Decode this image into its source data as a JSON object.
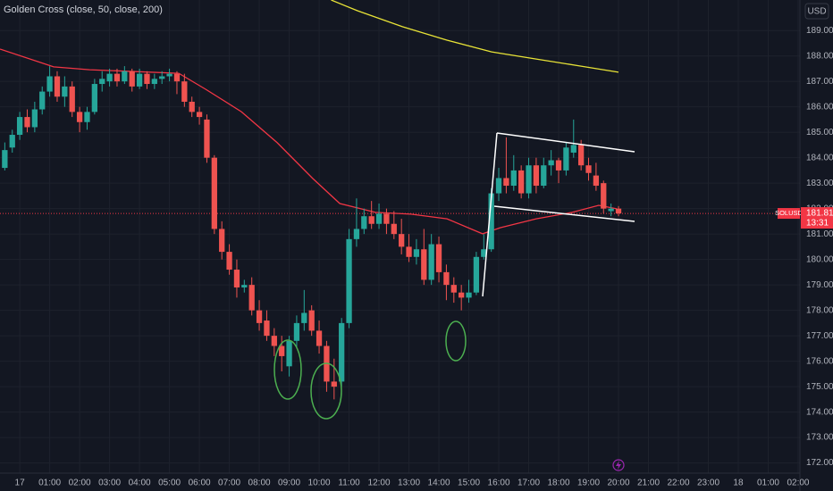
{
  "chart_data": {
    "type": "candlestick",
    "title": "Golden Cross (close, 50, close, 200)",
    "symbol": "SOLUSD",
    "currency": "USD",
    "countdown": "13:31",
    "last_price": 181.81,
    "last_price_color": "#f23645",
    "grid": true,
    "xlim": [
      -0.66,
      26.06
    ],
    "ylim": [
      171.6,
      190.2
    ],
    "xticks": [
      {
        "value": 0,
        "label": "17"
      },
      {
        "value": 1,
        "label": "01:00"
      },
      {
        "value": 2,
        "label": "02:00"
      },
      {
        "value": 3,
        "label": "03:00"
      },
      {
        "value": 4,
        "label": "04:00"
      },
      {
        "value": 5,
        "label": "05:00"
      },
      {
        "value": 6,
        "label": "06:00"
      },
      {
        "value": 7,
        "label": "07:00"
      },
      {
        "value": 8,
        "label": "08:00"
      },
      {
        "value": 9,
        "label": "09:00"
      },
      {
        "value": 10,
        "label": "10:00"
      },
      {
        "value": 11,
        "label": "11:00"
      },
      {
        "value": 12,
        "label": "12:00"
      },
      {
        "value": 13,
        "label": "13:00"
      },
      {
        "value": 14,
        "label": "14:00"
      },
      {
        "value": 15,
        "label": "15:00"
      },
      {
        "value": 16,
        "label": "16:00"
      },
      {
        "value": 17,
        "label": "17:00"
      },
      {
        "value": 18,
        "label": "18:00"
      },
      {
        "value": 19,
        "label": "19:00"
      },
      {
        "value": 20,
        "label": "20:00"
      },
      {
        "value": 21,
        "label": "21:00"
      },
      {
        "value": 22,
        "label": "22:00"
      },
      {
        "value": 23,
        "label": "23:00"
      },
      {
        "value": 24,
        "label": "18"
      },
      {
        "value": 25,
        "label": "01:00"
      },
      {
        "value": 26,
        "label": "02:00"
      }
    ],
    "yticks": [
      {
        "value": 189,
        "label": "189.00"
      },
      {
        "value": 188,
        "label": "188.00"
      },
      {
        "value": 187,
        "label": "187.00"
      },
      {
        "value": 186,
        "label": "186.00"
      },
      {
        "value": 185,
        "label": "185.00"
      },
      {
        "value": 184,
        "label": "184.00"
      },
      {
        "value": 183,
        "label": "183.00"
      },
      {
        "value": 182,
        "label": "182.00"
      },
      {
        "value": 181,
        "label": "181.00"
      },
      {
        "value": 180,
        "label": "180.00"
      },
      {
        "value": 179,
        "label": "179.00"
      },
      {
        "value": 178,
        "label": "178.00"
      },
      {
        "value": 177,
        "label": "177.00"
      },
      {
        "value": 176,
        "label": "176.00"
      },
      {
        "value": 175,
        "label": "175.00"
      },
      {
        "value": 174,
        "label": "174.00"
      },
      {
        "value": 173,
        "label": "173.00"
      },
      {
        "value": 172,
        "label": "172.00"
      }
    ],
    "candles": {
      "up_color": "#26a69a",
      "down_color": "#ef5350",
      "x": [
        -0.5,
        -0.25,
        0,
        0.25,
        0.5,
        0.75,
        1,
        1.25,
        1.5,
        1.75,
        2,
        2.25,
        2.5,
        2.75,
        3,
        3.25,
        3.5,
        3.75,
        4,
        4.25,
        4.5,
        4.75,
        5,
        5.25,
        5.5,
        5.75,
        6,
        6.25,
        6.5,
        6.75,
        7,
        7.25,
        7.5,
        7.75,
        8,
        8.25,
        8.5,
        8.75,
        9,
        9.25,
        9.5,
        9.75,
        10,
        10.25,
        10.5,
        10.75,
        11,
        11.25,
        11.5,
        11.75,
        12,
        12.25,
        12.5,
        12.75,
        13,
        13.25,
        13.5,
        13.75,
        14,
        14.25,
        14.5,
        14.75,
        15,
        15.25,
        15.5,
        15.75,
        16,
        16.25,
        16.5,
        16.75,
        17,
        17.25,
        17.5,
        17.75,
        18,
        18.25,
        18.5,
        18.75,
        19,
        19.25,
        19.5,
        19.75,
        20
      ],
      "open": [
        183.6,
        184.4,
        184.9,
        185.6,
        185.2,
        185.9,
        186.6,
        187.2,
        186.4,
        186.8,
        185.8,
        185.4,
        185.8,
        186.9,
        187.0,
        187.3,
        187.0,
        187.4,
        186.8,
        187.3,
        186.9,
        187.1,
        187.2,
        187.3,
        187.0,
        186.2,
        185.8,
        185.5,
        184.0,
        181.2,
        180.3,
        179.6,
        178.9,
        179.0,
        178.0,
        177.6,
        177.0,
        176.6,
        175.8,
        176.8,
        177.5,
        178.0,
        177.2,
        176.6,
        175.2,
        175.2,
        177.5,
        180.8,
        181.2,
        181.7,
        181.4,
        181.8,
        181.4,
        181.0,
        180.5,
        180.1,
        180.4,
        179.2,
        180.6,
        179.5,
        179.0,
        178.7,
        178.5,
        178.7,
        180.1,
        180.4,
        182.6,
        183.2,
        182.9,
        183.5,
        182.6,
        183.7,
        182.9,
        183.7,
        183.9,
        183.5,
        184.2,
        184.5,
        183.7,
        183.3,
        183.0,
        181.9,
        182.0
      ],
      "high": [
        184.6,
        185.1,
        185.8,
        185.9,
        186.2,
        186.8,
        187.6,
        187.4,
        187.2,
        187.0,
        186.0,
        186.0,
        187.1,
        187.4,
        187.5,
        187.5,
        187.6,
        187.5,
        187.5,
        187.4,
        187.3,
        187.4,
        187.5,
        187.4,
        187.3,
        186.4,
        186.0,
        185.7,
        184.1,
        181.5,
        180.6,
        180.0,
        179.2,
        179.3,
        178.4,
        178.0,
        177.3,
        177.0,
        177.0,
        177.8,
        178.8,
        178.2,
        177.6,
        176.8,
        176.1,
        177.7,
        181.2,
        182.4,
        182.0,
        182.3,
        182.2,
        182.0,
        181.9,
        181.6,
        181.0,
        180.8,
        181.2,
        181.0,
        180.9,
        179.8,
        179.3,
        179.0,
        179.2,
        180.3,
        181.0,
        182.8,
        183.6,
        184.8,
        184.1,
        183.7,
        184.0,
        184.0,
        184.0,
        184.3,
        184.0,
        184.6,
        185.5,
        184.7,
        184.0,
        183.8,
        183.1,
        182.2,
        182.1
      ],
      "low": [
        183.5,
        184.2,
        184.7,
        185.0,
        185.0,
        185.7,
        186.4,
        186.2,
        186.0,
        185.6,
        185.0,
        185.1,
        185.7,
        186.6,
        186.8,
        186.8,
        186.9,
        186.6,
        186.7,
        186.7,
        186.7,
        186.9,
        187.0,
        186.5,
        186.0,
        185.6,
        185.3,
        183.8,
        181.0,
        180.0,
        179.4,
        178.5,
        178.7,
        177.8,
        177.2,
        176.8,
        176.2,
        175.6,
        175.4,
        176.5,
        177.2,
        177.0,
        176.3,
        174.8,
        174.5,
        175.0,
        177.3,
        180.5,
        181.0,
        181.2,
        181.2,
        181.0,
        180.8,
        180.2,
        179.9,
        179.8,
        179.0,
        179.0,
        179.1,
        178.4,
        178.3,
        178.0,
        178.3,
        178.6,
        180.0,
        180.3,
        182.3,
        182.6,
        182.7,
        182.4,
        182.4,
        182.6,
        182.8,
        183.3,
        183.0,
        183.3,
        184.0,
        183.5,
        183.1,
        182.7,
        181.8,
        181.7,
        181.7
      ],
      "close": [
        184.3,
        184.9,
        185.6,
        185.2,
        185.9,
        186.6,
        187.2,
        186.4,
        186.8,
        185.8,
        185.4,
        185.8,
        186.9,
        187.1,
        187.3,
        187.0,
        187.4,
        186.8,
        187.3,
        186.9,
        187.1,
        187.2,
        187.3,
        187.0,
        186.2,
        185.8,
        185.6,
        184.0,
        181.2,
        180.3,
        179.6,
        178.9,
        179.0,
        178.0,
        177.5,
        177.0,
        176.6,
        176.2,
        176.8,
        177.5,
        177.9,
        177.2,
        176.6,
        175.2,
        175.0,
        177.5,
        180.8,
        181.2,
        181.7,
        181.4,
        181.8,
        181.4,
        181.0,
        180.5,
        180.1,
        180.4,
        179.2,
        180.6,
        179.5,
        179.0,
        178.7,
        178.5,
        178.7,
        180.1,
        180.4,
        182.6,
        183.2,
        182.9,
        183.5,
        182.6,
        183.7,
        182.9,
        183.7,
        183.9,
        183.5,
        184.4,
        184.5,
        183.7,
        183.4,
        182.9,
        182.0,
        182.0,
        181.81
      ]
    },
    "lines": [
      {
        "color": "#f23645",
        "x": [
          -0.66,
          1.13,
          2.33,
          5.31,
          6.21,
          7.4,
          8.6,
          9.79,
          10.69,
          11.88,
          13.07,
          14.27,
          15.46,
          16.06,
          17.25,
          18.45,
          19.34,
          19.94
        ],
        "values": [
          188.27,
          187.57,
          187.46,
          187.32,
          186.69,
          185.81,
          184.59,
          183.18,
          182.2,
          181.85,
          181.78,
          181.6,
          181.01,
          181.25,
          181.6,
          181.85,
          182.13,
          181.99
        ]
      },
      {
        "color": "#e8e337",
        "x": [
          10.4,
          11.28,
          12.78,
          14.27,
          15.76,
          17.25,
          18.75,
          20.0
        ],
        "values": [
          190.2,
          189.78,
          189.15,
          188.62,
          188.16,
          187.88,
          187.6,
          187.36
        ]
      }
    ]
  }
}
